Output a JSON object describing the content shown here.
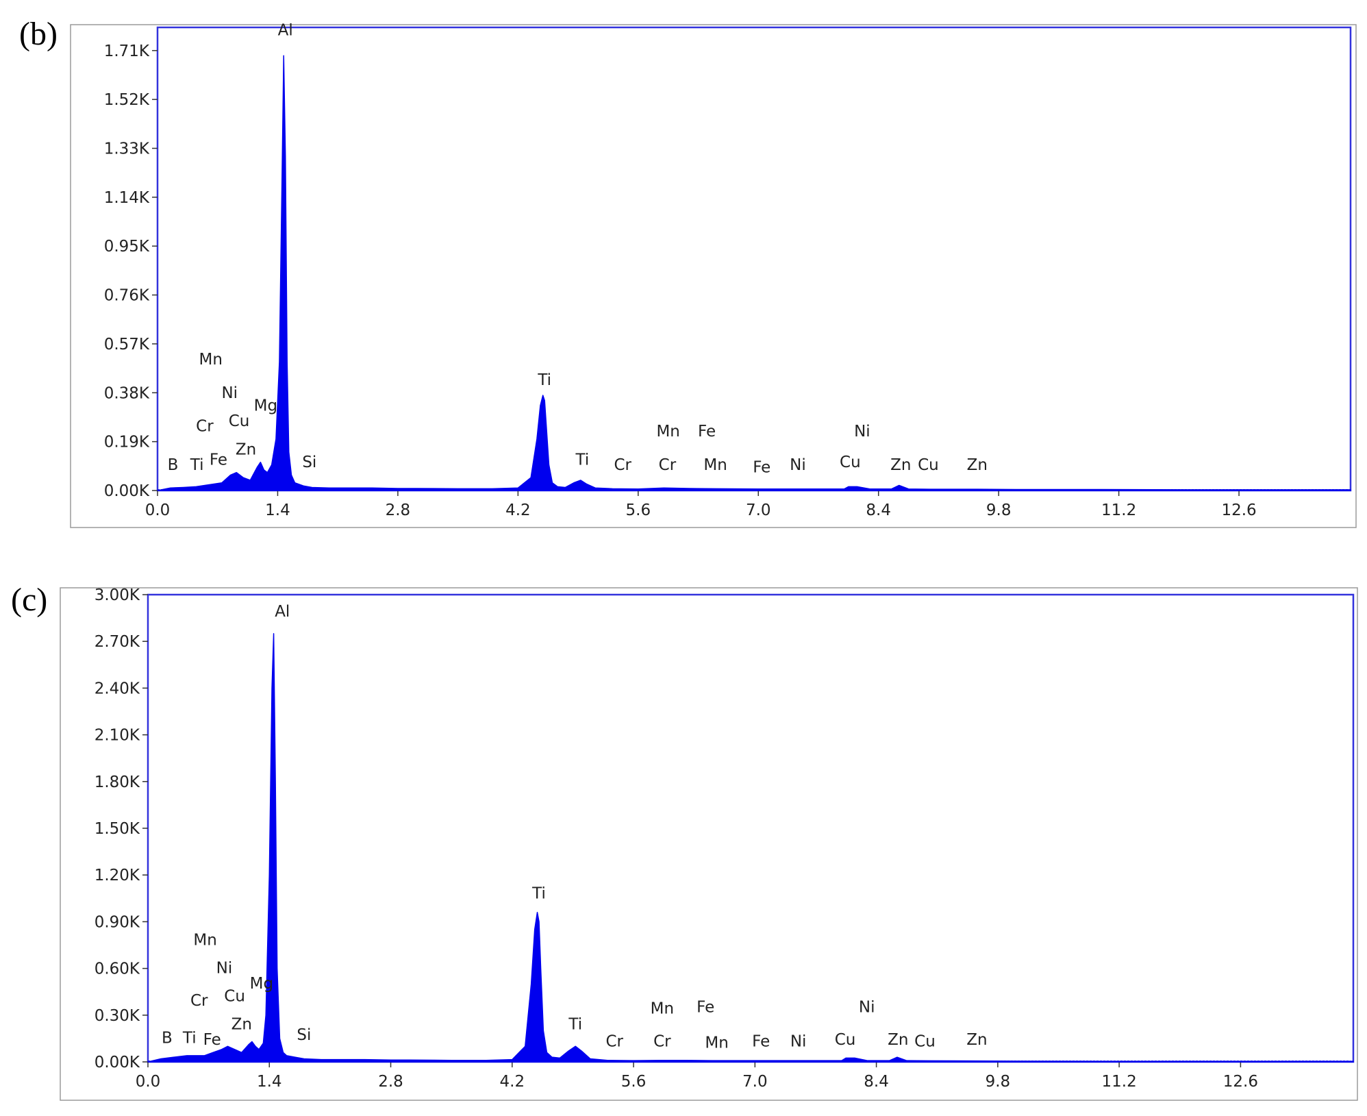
{
  "figure": {
    "panels": [
      {
        "letter": "(b)"
      },
      {
        "letter": "(c)"
      }
    ]
  },
  "chart_data": [
    {
      "type": "area",
      "title": "",
      "xlabel": "",
      "ylabel": "",
      "xlim": [
        0,
        13.9
      ],
      "ylim": [
        0,
        1.8
      ],
      "x_ticks": [
        "0.0",
        "1.4",
        "2.8",
        "4.2",
        "5.6",
        "7.0",
        "8.4",
        "9.8",
        "11.2",
        "12.6"
      ],
      "y_ticks": [
        "0.00K",
        "0.19K",
        "0.38K",
        "0.57K",
        "0.76K",
        "0.95K",
        "1.14K",
        "1.33K",
        "1.52K",
        "1.71K"
      ],
      "color": "#0000ee",
      "series": [
        {
          "x": [
            0.0,
            0.15,
            0.3,
            0.45,
            0.55,
            0.65,
            0.75,
            0.85,
            0.92,
            1.0,
            1.08,
            1.16,
            1.2,
            1.24,
            1.28,
            1.33,
            1.38,
            1.42,
            1.45,
            1.47,
            1.49,
            1.51,
            1.53,
            1.56,
            1.6,
            1.7,
            1.8,
            2.0,
            2.5,
            2.8,
            3.0,
            3.5,
            3.9,
            4.2,
            4.35,
            4.42,
            4.46,
            4.49,
            4.51,
            4.53,
            4.56,
            4.6,
            4.66,
            4.75,
            4.85,
            4.93,
            5.0,
            5.1,
            5.3,
            5.6,
            5.9,
            6.2,
            6.5,
            7.0,
            7.5,
            8.0,
            8.05,
            8.15,
            8.3,
            8.55,
            8.64,
            8.75,
            9.0,
            9.55,
            10.0,
            11.0,
            12.0,
            13.0,
            13.9
          ],
          "y": [
            0.0,
            0.01,
            0.012,
            0.015,
            0.02,
            0.025,
            0.03,
            0.06,
            0.07,
            0.05,
            0.04,
            0.09,
            0.11,
            0.08,
            0.07,
            0.1,
            0.2,
            0.5,
            1.2,
            1.69,
            1.3,
            0.5,
            0.15,
            0.06,
            0.03,
            0.018,
            0.012,
            0.01,
            0.01,
            0.008,
            0.008,
            0.007,
            0.007,
            0.01,
            0.05,
            0.2,
            0.33,
            0.37,
            0.35,
            0.25,
            0.1,
            0.03,
            0.015,
            0.012,
            0.03,
            0.04,
            0.025,
            0.01,
            0.007,
            0.006,
            0.01,
            0.008,
            0.007,
            0.006,
            0.006,
            0.006,
            0.015,
            0.015,
            0.006,
            0.006,
            0.02,
            0.006,
            0.005,
            0.005,
            0.004,
            0.004,
            0.003,
            0.003,
            0.003
          ]
        }
      ],
      "annotations": [
        {
          "text": "Al",
          "x": 1.49,
          "y": 1.77
        },
        {
          "text": "Mn",
          "x": 0.62,
          "y": 0.49
        },
        {
          "text": "Ni",
          "x": 0.84,
          "y": 0.36
        },
        {
          "text": "Cr",
          "x": 0.55,
          "y": 0.23
        },
        {
          "text": "Cu",
          "x": 0.95,
          "y": 0.25
        },
        {
          "text": "Mg",
          "x": 1.26,
          "y": 0.31
        },
        {
          "text": "Zn",
          "x": 1.03,
          "y": 0.14
        },
        {
          "text": "B",
          "x": 0.18,
          "y": 0.08
        },
        {
          "text": "Ti",
          "x": 0.46,
          "y": 0.08
        },
        {
          "text": "Fe",
          "x": 0.71,
          "y": 0.1
        },
        {
          "text": "Si",
          "x": 1.77,
          "y": 0.09
        },
        {
          "text": "Ti",
          "x": 4.51,
          "y": 0.41
        },
        {
          "text": "Ti",
          "x": 4.95,
          "y": 0.1
        },
        {
          "text": "Cr",
          "x": 5.42,
          "y": 0.08
        },
        {
          "text": "Mn",
          "x": 5.95,
          "y": 0.21
        },
        {
          "text": "Cr",
          "x": 5.94,
          "y": 0.08
        },
        {
          "text": "Fe",
          "x": 6.4,
          "y": 0.21
        },
        {
          "text": "Mn",
          "x": 6.5,
          "y": 0.08
        },
        {
          "text": "Fe",
          "x": 7.04,
          "y": 0.07
        },
        {
          "text": "Ni",
          "x": 7.46,
          "y": 0.08
        },
        {
          "text": "Cu",
          "x": 8.07,
          "y": 0.09
        },
        {
          "text": "Ni",
          "x": 8.21,
          "y": 0.21
        },
        {
          "text": "Zn",
          "x": 8.66,
          "y": 0.08
        },
        {
          "text": "Cu",
          "x": 8.98,
          "y": 0.08
        },
        {
          "text": "Zn",
          "x": 9.55,
          "y": 0.08
        }
      ]
    },
    {
      "type": "area",
      "title": "",
      "xlabel": "",
      "ylabel": "",
      "xlim": [
        0,
        13.9
      ],
      "ylim": [
        0,
        3.0
      ],
      "x_ticks": [
        "0.0",
        "1.4",
        "2.8",
        "4.2",
        "5.6",
        "7.0",
        "8.4",
        "9.8",
        "11.2",
        "12.6"
      ],
      "y_ticks": [
        "0.00K",
        "0.30K",
        "0.60K",
        "0.90K",
        "1.20K",
        "1.50K",
        "1.80K",
        "2.10K",
        "2.40K",
        "2.70K",
        "3.00K"
      ],
      "color": "#0000ee",
      "series": [
        {
          "x": [
            0.0,
            0.15,
            0.3,
            0.45,
            0.55,
            0.65,
            0.75,
            0.85,
            0.92,
            1.0,
            1.08,
            1.16,
            1.2,
            1.24,
            1.28,
            1.33,
            1.36,
            1.4,
            1.43,
            1.45,
            1.47,
            1.49,
            1.52,
            1.56,
            1.6,
            1.7,
            1.8,
            2.0,
            2.5,
            2.8,
            3.0,
            3.5,
            3.9,
            4.2,
            4.35,
            4.42,
            4.46,
            4.49,
            4.51,
            4.53,
            4.56,
            4.6,
            4.66,
            4.75,
            4.85,
            4.93,
            5.0,
            5.1,
            5.3,
            5.6,
            5.9,
            6.2,
            6.5,
            7.0,
            7.5,
            8.0,
            8.05,
            8.15,
            8.3,
            8.55,
            8.64,
            8.75,
            9.0,
            9.55,
            10.0,
            11.0,
            12.0,
            13.0,
            13.9
          ],
          "y": [
            0.0,
            0.02,
            0.03,
            0.04,
            0.04,
            0.04,
            0.06,
            0.08,
            0.1,
            0.08,
            0.06,
            0.11,
            0.13,
            0.1,
            0.08,
            0.12,
            0.3,
            1.2,
            2.4,
            2.75,
            1.8,
            0.6,
            0.15,
            0.06,
            0.04,
            0.03,
            0.02,
            0.015,
            0.015,
            0.012,
            0.012,
            0.01,
            0.01,
            0.015,
            0.1,
            0.5,
            0.85,
            0.96,
            0.9,
            0.6,
            0.2,
            0.06,
            0.03,
            0.025,
            0.07,
            0.1,
            0.07,
            0.02,
            0.01,
            0.008,
            0.01,
            0.01,
            0.008,
            0.008,
            0.008,
            0.008,
            0.025,
            0.025,
            0.008,
            0.008,
            0.03,
            0.008,
            0.007,
            0.006,
            0.005,
            0.004,
            0.004,
            0.004,
            0.004
          ]
        }
      ],
      "annotations": [
        {
          "text": "Al",
          "x": 1.55,
          "y": 2.86
        },
        {
          "text": "Mn",
          "x": 0.66,
          "y": 0.75
        },
        {
          "text": "Ni",
          "x": 0.88,
          "y": 0.57
        },
        {
          "text": "Cr",
          "x": 0.59,
          "y": 0.36
        },
        {
          "text": "Cu",
          "x": 1.0,
          "y": 0.39
        },
        {
          "text": "Mg",
          "x": 1.31,
          "y": 0.47
        },
        {
          "text": "Zn",
          "x": 1.08,
          "y": 0.21
        },
        {
          "text": "B",
          "x": 0.22,
          "y": 0.12
        },
        {
          "text": "Ti",
          "x": 0.48,
          "y": 0.12
        },
        {
          "text": "Fe",
          "x": 0.74,
          "y": 0.11
        },
        {
          "text": "Si",
          "x": 1.8,
          "y": 0.14
        },
        {
          "text": "Ti",
          "x": 4.51,
          "y": 1.05
        },
        {
          "text": "Ti",
          "x": 4.93,
          "y": 0.21
        },
        {
          "text": "Cr",
          "x": 5.38,
          "y": 0.1
        },
        {
          "text": "Mn",
          "x": 5.93,
          "y": 0.31
        },
        {
          "text": "Cr",
          "x": 5.93,
          "y": 0.1
        },
        {
          "text": "Fe",
          "x": 6.43,
          "y": 0.32
        },
        {
          "text": "Mn",
          "x": 6.56,
          "y": 0.09
        },
        {
          "text": "Fe",
          "x": 7.07,
          "y": 0.1
        },
        {
          "text": "Ni",
          "x": 7.5,
          "y": 0.1
        },
        {
          "text": "Cu",
          "x": 8.04,
          "y": 0.11
        },
        {
          "text": "Ni",
          "x": 8.29,
          "y": 0.32
        },
        {
          "text": "Zn",
          "x": 8.65,
          "y": 0.11
        },
        {
          "text": "Cu",
          "x": 8.96,
          "y": 0.1
        },
        {
          "text": "Zn",
          "x": 9.56,
          "y": 0.11
        }
      ]
    }
  ]
}
